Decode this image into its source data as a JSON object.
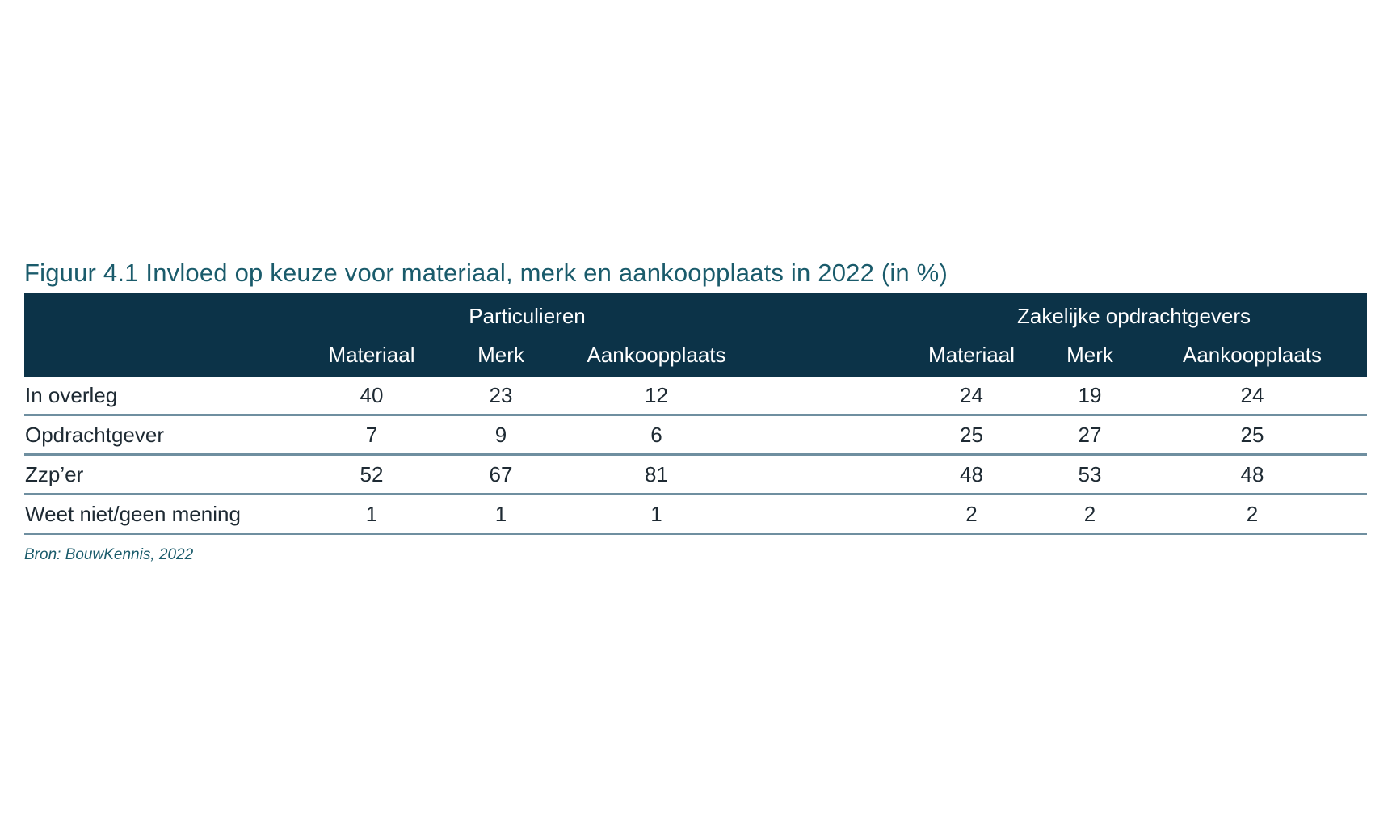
{
  "chart_data": {
    "type": "table",
    "title": "Figuur 4.1 Invloed op keuze voor materiaal, merk en aankoopplaats in 2022 (in %)",
    "groups": [
      {
        "name": "Particulieren",
        "columns": [
          "Materiaal",
          "Merk",
          "Aankoopplaats"
        ]
      },
      {
        "name": "Zakelijke opdrachtgevers",
        "columns": [
          "Materiaal",
          "Merk",
          "Aankoopplaats"
        ]
      }
    ],
    "rows": [
      {
        "label": "In overleg",
        "values": [
          "40",
          "23",
          "12",
          "24",
          "19",
          "24"
        ]
      },
      {
        "label": "Opdrachtgever",
        "values": [
          "7",
          "9",
          "6",
          "25",
          "27",
          "25"
        ]
      },
      {
        "label": "Zzp’er",
        "values": [
          "52",
          "67",
          "81",
          "48",
          "53",
          "48"
        ]
      },
      {
        "label": "Weet niet/geen mening",
        "values": [
          "1",
          "1",
          "1",
          "2",
          "2",
          "2"
        ]
      }
    ],
    "source": "Bron: BouwKennis, 2022"
  },
  "colors": {
    "header_bg": "#0c3348",
    "title": "#1a5b6b",
    "rule": "#6f8fa0"
  }
}
